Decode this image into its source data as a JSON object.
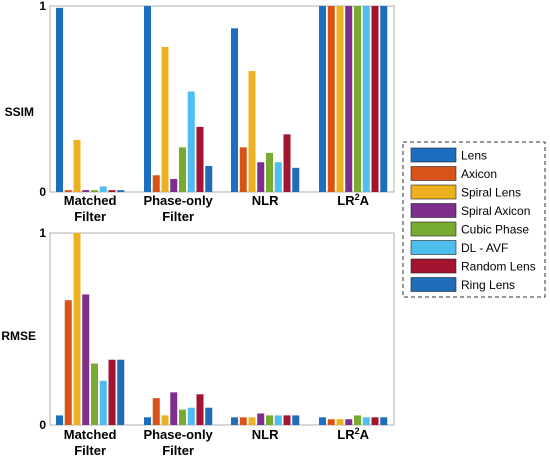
{
  "chart_data": [
    {
      "type": "bar",
      "ylabel": "SSIM",
      "ylim": [
        0,
        1
      ],
      "yticks": [
        "0",
        "1"
      ],
      "categories": [
        {
          "lines": [
            "Matched",
            "Filter"
          ]
        },
        {
          "lines": [
            "Phase-only",
            "Filter"
          ]
        },
        {
          "lines": [
            "NLR"
          ]
        },
        {
          "lines": [
            "LR",
            "2",
            "A"
          ]
        }
      ],
      "series": [
        {
          "name": "Lens",
          "values": [
            0.99,
            1.0,
            0.88,
            1.02
          ]
        },
        {
          "name": "Axicon",
          "values": [
            0.01,
            0.09,
            0.24,
            1.0
          ]
        },
        {
          "name": "Spiral Lens",
          "values": [
            0.28,
            0.78,
            0.65,
            1.03
          ]
        },
        {
          "name": "Spiral Axicon",
          "values": [
            0.01,
            0.07,
            0.16,
            1.01
          ]
        },
        {
          "name": "Cubic Phase",
          "values": [
            0.01,
            0.24,
            0.21,
            1.02
          ]
        },
        {
          "name": "DL - AVF",
          "values": [
            0.03,
            0.54,
            0.16,
            1.02
          ]
        },
        {
          "name": "Random Lens",
          "values": [
            0.01,
            0.35,
            0.31,
            1.02
          ]
        },
        {
          "name": "Ring Lens",
          "values": [
            0.01,
            0.14,
            0.13,
            1.01
          ]
        }
      ],
      "grid": false
    },
    {
      "type": "bar",
      "ylabel": "RMSE",
      "ylim": [
        0,
        1
      ],
      "yticks": [
        "0",
        "1"
      ],
      "categories": [
        {
          "lines": [
            "Matched",
            "Filter"
          ]
        },
        {
          "lines": [
            "Phase-only",
            "Filter"
          ]
        },
        {
          "lines": [
            "NLR"
          ]
        },
        {
          "lines": [
            "LR",
            "2",
            "A"
          ]
        }
      ],
      "series": [
        {
          "name": "Lens",
          "values": [
            0.05,
            0.04,
            0.04,
            0.04
          ]
        },
        {
          "name": "Axicon",
          "values": [
            0.65,
            0.14,
            0.04,
            0.03
          ]
        },
        {
          "name": "Spiral Lens",
          "values": [
            1.0,
            0.05,
            0.04,
            0.03
          ]
        },
        {
          "name": "Spiral Axicon",
          "values": [
            0.68,
            0.17,
            0.06,
            0.03
          ]
        },
        {
          "name": "Cubic Phase",
          "values": [
            0.32,
            0.08,
            0.05,
            0.05
          ]
        },
        {
          "name": "DL - AVF",
          "values": [
            0.23,
            0.09,
            0.05,
            0.04
          ]
        },
        {
          "name": "Random Lens",
          "values": [
            0.34,
            0.16,
            0.05,
            0.04
          ]
        },
        {
          "name": "Ring Lens",
          "values": [
            0.34,
            0.09,
            0.05,
            0.04
          ]
        }
      ],
      "grid": false
    }
  ],
  "legend": {
    "placement": "right",
    "entries": [
      {
        "label": "Lens",
        "color": "#1C6FBF"
      },
      {
        "label": "Axicon",
        "color": "#D95319"
      },
      {
        "label": "Spiral Lens",
        "color": "#EDB120"
      },
      {
        "label": "Spiral Axicon",
        "color": "#7E2F8E"
      },
      {
        "label": "Cubic Phase",
        "color": "#77AC30"
      },
      {
        "label": "DL - AVF",
        "color": "#4DBEEE"
      },
      {
        "label": "Random Lens",
        "color": "#A2142F"
      },
      {
        "label": "Ring Lens",
        "color": "#1F6CB8"
      }
    ]
  }
}
